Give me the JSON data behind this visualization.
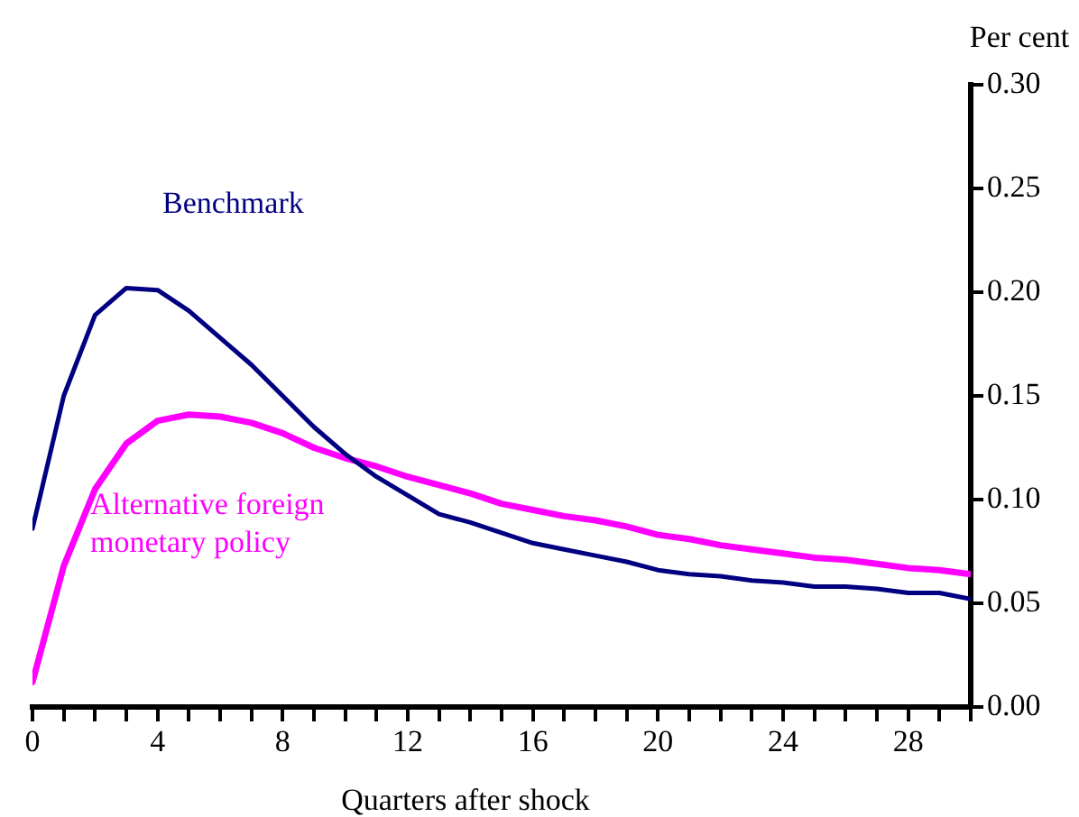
{
  "chart_data": {
    "type": "line",
    "xlabel": "Quarters after shock",
    "ylabel": "Per cent",
    "x": [
      0,
      1,
      2,
      3,
      4,
      5,
      6,
      7,
      8,
      9,
      10,
      11,
      12,
      13,
      14,
      15,
      16,
      17,
      18,
      19,
      20,
      21,
      22,
      23,
      24,
      25,
      26,
      27,
      28,
      29,
      30
    ],
    "series": [
      {
        "name": "Benchmark",
        "color": "#000080",
        "values": [
          0.086,
          0.15,
          0.189,
          0.202,
          0.201,
          0.191,
          0.178,
          0.165,
          0.15,
          0.135,
          0.122,
          0.111,
          0.102,
          0.093,
          0.089,
          0.084,
          0.079,
          0.076,
          0.073,
          0.07,
          0.066,
          0.064,
          0.063,
          0.061,
          0.06,
          0.058,
          0.058,
          0.057,
          0.055,
          0.055,
          0.052
        ]
      },
      {
        "name": "Alternative foreign monetary policy",
        "color": "#ff00ff",
        "values": [
          0.012,
          0.068,
          0.105,
          0.127,
          0.138,
          0.141,
          0.14,
          0.137,
          0.132,
          0.125,
          0.12,
          0.116,
          0.111,
          0.107,
          0.103,
          0.098,
          0.095,
          0.092,
          0.09,
          0.087,
          0.083,
          0.081,
          0.078,
          0.076,
          0.074,
          0.072,
          0.071,
          0.069,
          0.067,
          0.066,
          0.064
        ]
      }
    ],
    "xlim": [
      0,
      30
    ],
    "xticks": [
      0,
      {
        "value": 1,
        "label": null
      },
      {
        "value": 2,
        "label": null
      },
      {
        "value": 3,
        "label": null
      },
      4,
      {
        "value": 5,
        "label": null
      },
      {
        "value": 6,
        "label": null
      },
      {
        "value": 7,
        "label": null
      },
      8,
      {
        "value": 9,
        "label": null
      },
      {
        "value": 10,
        "label": null
      },
      {
        "value": 11,
        "label": null
      },
      12,
      {
        "value": 13,
        "label": null
      },
      {
        "value": 14,
        "label": null
      },
      {
        "value": 15,
        "label": null
      },
      16,
      {
        "value": 17,
        "label": null
      },
      {
        "value": 18,
        "label": null
      },
      {
        "value": 19,
        "label": null
      },
      20,
      {
        "value": 21,
        "label": null
      },
      {
        "value": 22,
        "label": null
      },
      {
        "value": 23,
        "label": null
      },
      24,
      {
        "value": 25,
        "label": null
      },
      {
        "value": 26,
        "label": null
      },
      {
        "value": 27,
        "label": null
      },
      28,
      {
        "value": 29,
        "label": null
      },
      {
        "value": 30,
        "label": null
      }
    ],
    "ylim": [
      0,
      0.3
    ],
    "yticks": [
      {
        "value": 0,
        "label": "0.00"
      },
      {
        "value": 0.05,
        "label": "0.05"
      },
      {
        "value": 0.1,
        "label": "0.10"
      },
      {
        "value": 0.15,
        "label": "0.15"
      },
      {
        "value": 0.2,
        "label": "0.20"
      },
      {
        "value": 0.25,
        "label": "0.25"
      },
      {
        "value": 0.3,
        "label": "0.30"
      }
    ],
    "grid": false,
    "legend": false,
    "marker": "none",
    "line_style": "solid"
  }
}
